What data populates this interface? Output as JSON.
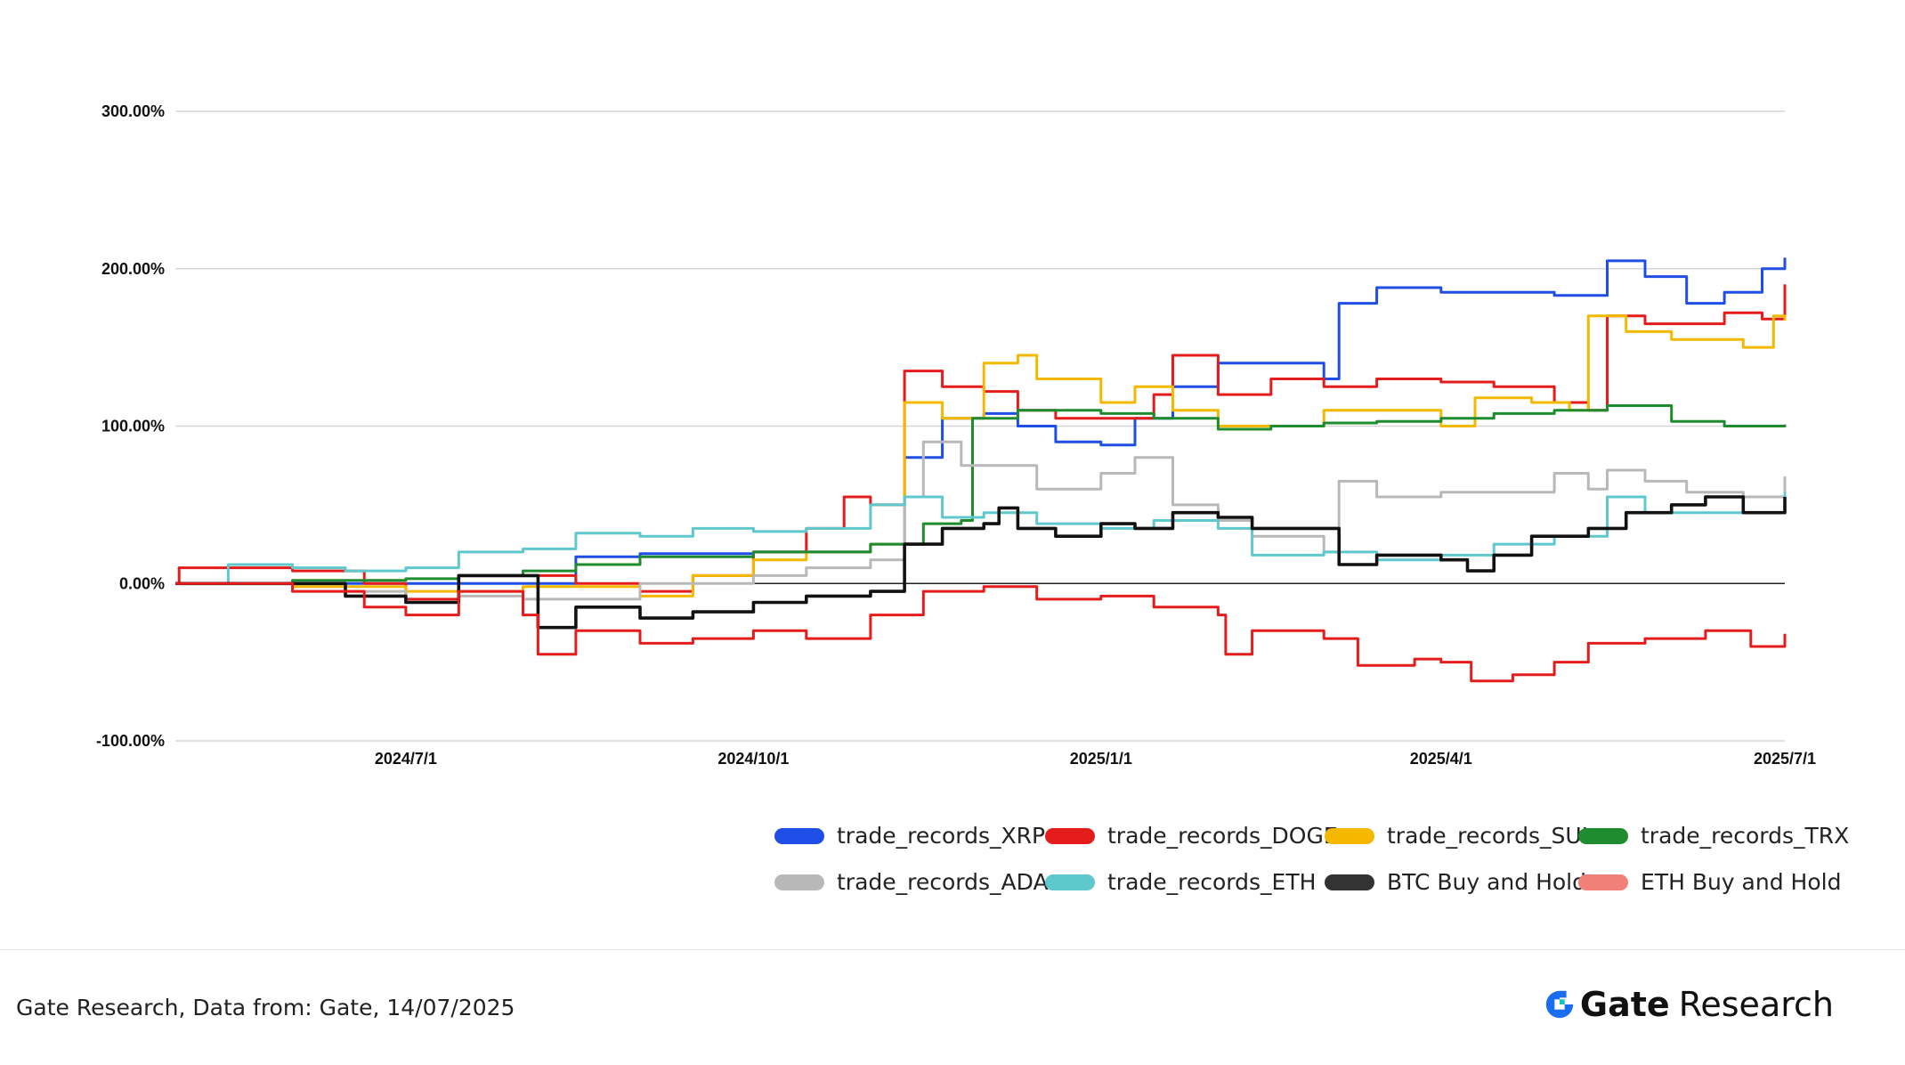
{
  "chart_data": {
    "type": "line",
    "title": "",
    "xlabel": "",
    "ylabel": "",
    "x_ticks": [
      "2024/7/1",
      "2024/10/1",
      "2025/1/1",
      "2025/4/1",
      "2025/7/1"
    ],
    "y_ticks": [
      "-100.00%",
      "0.00%",
      "100.00%",
      "200.00%",
      "300.00%"
    ],
    "ylim": [
      -100,
      300
    ],
    "xlim": [
      "2024/5/1",
      "2025/7/1"
    ],
    "grid": true,
    "legend_position": "bottom-right",
    "series": [
      {
        "name": "trade_records_XRP",
        "color": "#1f4ee6",
        "points": [
          [
            "2024/5/1",
            0
          ],
          [
            "2024/6/1",
            0
          ],
          [
            "2024/7/1",
            0
          ],
          [
            "2024/8/1",
            0
          ],
          [
            "2024/8/15",
            17
          ],
          [
            "2024/9/1",
            19
          ],
          [
            "2024/10/1",
            20
          ],
          [
            "2024/11/1",
            25
          ],
          [
            "2024/11/10",
            80
          ],
          [
            "2024/11/20",
            105
          ],
          [
            "2024/12/1",
            108
          ],
          [
            "2024/12/10",
            100
          ],
          [
            "2024/12/20",
            90
          ],
          [
            "2025/1/1",
            88
          ],
          [
            "2025/1/10",
            105
          ],
          [
            "2025/1/20",
            125
          ],
          [
            "2025/2/1",
            140
          ],
          [
            "2025/2/15",
            140
          ],
          [
            "2025/3/1",
            130
          ],
          [
            "2025/3/5",
            178
          ],
          [
            "2025/3/15",
            188
          ],
          [
            "2025/4/1",
            185
          ],
          [
            "2025/4/20",
            185
          ],
          [
            "2025/5/1",
            183
          ],
          [
            "2025/5/15",
            205
          ],
          [
            "2025/5/25",
            195
          ],
          [
            "2025/6/5",
            178
          ],
          [
            "2025/6/15",
            185
          ],
          [
            "2025/6/25",
            200
          ],
          [
            "2025/7/1",
            207
          ]
        ]
      },
      {
        "name": "trade_records_DOGE",
        "color": "#e51c1c",
        "points": [
          [
            "2024/5/1",
            0
          ],
          [
            "2024/5/2",
            10
          ],
          [
            "2024/6/1",
            8
          ],
          [
            "2024/6/20",
            0
          ],
          [
            "2024/7/1",
            -10
          ],
          [
            "2024/7/15",
            5
          ],
          [
            "2024/8/1",
            5
          ],
          [
            "2024/8/15",
            0
          ],
          [
            "2024/9/1",
            -5
          ],
          [
            "2024/9/15",
            5
          ],
          [
            "2024/10/1",
            20
          ],
          [
            "2024/10/15",
            35
          ],
          [
            "2024/10/25",
            55
          ],
          [
            "2024/11/1",
            50
          ],
          [
            "2024/11/10",
            135
          ],
          [
            "2024/11/20",
            125
          ],
          [
            "2024/12/1",
            122
          ],
          [
            "2024/12/10",
            110
          ],
          [
            "2024/12/20",
            105
          ],
          [
            "2025/1/1",
            105
          ],
          [
            "2025/1/15",
            120
          ],
          [
            "2025/1/20",
            145
          ],
          [
            "2025/2/1",
            120
          ],
          [
            "2025/2/15",
            130
          ],
          [
            "2025/3/1",
            125
          ],
          [
            "2025/3/15",
            130
          ],
          [
            "2025/4/1",
            128
          ],
          [
            "2025/4/15",
            125
          ],
          [
            "2025/5/1",
            115
          ],
          [
            "2025/5/10",
            110
          ],
          [
            "2025/5/15",
            170
          ],
          [
            "2025/5/25",
            165
          ],
          [
            "2025/6/5",
            165
          ],
          [
            "2025/6/15",
            172
          ],
          [
            "2025/6/25",
            168
          ],
          [
            "2025/7/1",
            190
          ]
        ]
      },
      {
        "name": "trade_records_SUI",
        "color": "#f5b800",
        "points": [
          [
            "2024/5/1",
            0
          ],
          [
            "2024/6/1",
            -2
          ],
          [
            "2024/7/1",
            -5
          ],
          [
            "2024/8/1",
            -2
          ],
          [
            "2024/9/1",
            -8
          ],
          [
            "2024/9/15",
            5
          ],
          [
            "2024/10/1",
            15
          ],
          [
            "2024/10/15",
            20
          ],
          [
            "2024/11/1",
            25
          ],
          [
            "2024/11/10",
            115
          ],
          [
            "2024/11/20",
            105
          ],
          [
            "2024/12/1",
            140
          ],
          [
            "2024/12/10",
            145
          ],
          [
            "2024/12/15",
            130
          ],
          [
            "2025/1/1",
            115
          ],
          [
            "2025/1/10",
            125
          ],
          [
            "2025/1/20",
            110
          ],
          [
            "2025/2/1",
            100
          ],
          [
            "2025/2/15",
            100
          ],
          [
            "2025/3/1",
            110
          ],
          [
            "2025/3/15",
            110
          ],
          [
            "2025/4/1",
            100
          ],
          [
            "2025/4/10",
            118
          ],
          [
            "2025/4/25",
            115
          ],
          [
            "2025/5/5",
            110
          ],
          [
            "2025/5/10",
            170
          ],
          [
            "2025/5/20",
            160
          ],
          [
            "2025/6/1",
            155
          ],
          [
            "2025/6/20",
            150
          ],
          [
            "2025/6/28",
            170
          ],
          [
            "2025/7/1",
            167
          ]
        ]
      },
      {
        "name": "trade_records_TRX",
        "color": "#1e8c2e",
        "points": [
          [
            "2024/5/1",
            0
          ],
          [
            "2024/6/1",
            2
          ],
          [
            "2024/7/1",
            3
          ],
          [
            "2024/7/15",
            5
          ],
          [
            "2024/8/1",
            8
          ],
          [
            "2024/8/15",
            12
          ],
          [
            "2024/9/1",
            17
          ],
          [
            "2024/10/1",
            20
          ],
          [
            "2024/11/1",
            25
          ],
          [
            "2024/11/15",
            38
          ],
          [
            "2024/11/25",
            40
          ],
          [
            "2024/11/28",
            105
          ],
          [
            "2024/12/10",
            110
          ],
          [
            "2025/1/1",
            108
          ],
          [
            "2025/1/15",
            105
          ],
          [
            "2025/2/1",
            98
          ],
          [
            "2025/2/15",
            100
          ],
          [
            "2025/3/1",
            102
          ],
          [
            "2025/3/15",
            103
          ],
          [
            "2025/4/1",
            105
          ],
          [
            "2025/4/15",
            108
          ],
          [
            "2025/5/1",
            110
          ],
          [
            "2025/5/15",
            113
          ],
          [
            "2025/6/1",
            103
          ],
          [
            "2025/6/15",
            100
          ],
          [
            "2025/7/1",
            101
          ]
        ]
      },
      {
        "name": "trade_records_ADA",
        "color": "#b8b8b8",
        "points": [
          [
            "2024/5/1",
            0
          ],
          [
            "2024/6/1",
            -5
          ],
          [
            "2024/7/1",
            -12
          ],
          [
            "2024/7/15",
            -8
          ],
          [
            "2024/8/1",
            -10
          ],
          [
            "2024/9/1",
            0
          ],
          [
            "2024/10/1",
            5
          ],
          [
            "2024/10/15",
            10
          ],
          [
            "2024/11/1",
            15
          ],
          [
            "2024/11/10",
            55
          ],
          [
            "2024/11/15",
            90
          ],
          [
            "2024/11/25",
            75
          ],
          [
            "2024/12/1",
            75
          ],
          [
            "2024/12/15",
            60
          ],
          [
            "2025/1/1",
            70
          ],
          [
            "2025/1/10",
            80
          ],
          [
            "2025/1/20",
            50
          ],
          [
            "2025/2/1",
            40
          ],
          [
            "2025/2/10",
            30
          ],
          [
            "2025/3/1",
            20
          ],
          [
            "2025/3/5",
            65
          ],
          [
            "2025/3/15",
            55
          ],
          [
            "2025/4/1",
            58
          ],
          [
            "2025/4/20",
            58
          ],
          [
            "2025/5/1",
            70
          ],
          [
            "2025/5/10",
            60
          ],
          [
            "2025/5/15",
            72
          ],
          [
            "2025/5/25",
            65
          ],
          [
            "2025/6/5",
            58
          ],
          [
            "2025/6/20",
            55
          ],
          [
            "2025/7/1",
            68
          ]
        ]
      },
      {
        "name": "trade_records_ETH",
        "color": "#5ec8cc",
        "points": [
          [
            "2024/5/1",
            0
          ],
          [
            "2024/5/15",
            12
          ],
          [
            "2024/6/1",
            10
          ],
          [
            "2024/6/15",
            8
          ],
          [
            "2024/7/1",
            10
          ],
          [
            "2024/7/15",
            20
          ],
          [
            "2024/8/1",
            22
          ],
          [
            "2024/8/15",
            32
          ],
          [
            "2024/9/1",
            30
          ],
          [
            "2024/9/15",
            35
          ],
          [
            "2024/10/1",
            33
          ],
          [
            "2024/10/15",
            35
          ],
          [
            "2024/11/1",
            50
          ],
          [
            "2024/11/10",
            55
          ],
          [
            "2024/11/20",
            42
          ],
          [
            "2024/12/1",
            45
          ],
          [
            "2024/12/15",
            38
          ],
          [
            "2025/1/1",
            35
          ],
          [
            "2025/1/15",
            40
          ],
          [
            "2025/2/1",
            35
          ],
          [
            "2025/2/10",
            18
          ],
          [
            "2025/3/1",
            20
          ],
          [
            "2025/3/15",
            15
          ],
          [
            "2025/4/1",
            18
          ],
          [
            "2025/4/15",
            25
          ],
          [
            "2025/5/1",
            30
          ],
          [
            "2025/5/15",
            55
          ],
          [
            "2025/5/25",
            45
          ],
          [
            "2025/6/15",
            45
          ],
          [
            "2025/6/25",
            45
          ],
          [
            "2025/7/1",
            58
          ]
        ]
      },
      {
        "name": "BTC Buy and Hold",
        "color": "#111111",
        "points": [
          [
            "2024/5/1",
            0
          ],
          [
            "2024/6/1",
            0
          ],
          [
            "2024/6/15",
            -8
          ],
          [
            "2024/7/1",
            -12
          ],
          [
            "2024/7/15",
            5
          ],
          [
            "2024/8/1",
            5
          ],
          [
            "2024/8/5",
            -28
          ],
          [
            "2024/8/15",
            -15
          ],
          [
            "2024/9/1",
            -22
          ],
          [
            "2024/9/15",
            -18
          ],
          [
            "2024/10/1",
            -12
          ],
          [
            "2024/10/15",
            -8
          ],
          [
            "2024/11/1",
            -5
          ],
          [
            "2024/11/10",
            25
          ],
          [
            "2024/11/20",
            35
          ],
          [
            "2024/12/1",
            38
          ],
          [
            "2024/12/5",
            48
          ],
          [
            "2024/12/10",
            35
          ],
          [
            "2024/12/20",
            30
          ],
          [
            "2025/1/1",
            38
          ],
          [
            "2025/1/10",
            35
          ],
          [
            "2025/1/20",
            45
          ],
          [
            "2025/2/1",
            42
          ],
          [
            "2025/2/10",
            35
          ],
          [
            "2025/2/25",
            35
          ],
          [
            "2025/3/5",
            12
          ],
          [
            "2025/3/15",
            18
          ],
          [
            "2025/4/1",
            15
          ],
          [
            "2025/4/8",
            8
          ],
          [
            "2025/4/15",
            18
          ],
          [
            "2025/4/25",
            30
          ],
          [
            "2025/5/10",
            35
          ],
          [
            "2025/5/20",
            45
          ],
          [
            "2025/6/1",
            50
          ],
          [
            "2025/6/10",
            55
          ],
          [
            "2025/6/20",
            45
          ],
          [
            "2025/7/1",
            55
          ]
        ]
      },
      {
        "name": "ETH Buy and Hold",
        "color": "#e51c1c",
        "points": [
          [
            "2024/5/1",
            0
          ],
          [
            "2024/6/1",
            -5
          ],
          [
            "2024/6/20",
            -15
          ],
          [
            "2024/7/1",
            -20
          ],
          [
            "2024/7/15",
            -5
          ],
          [
            "2024/8/1",
            -20
          ],
          [
            "2024/8/5",
            -45
          ],
          [
            "2024/8/15",
            -30
          ],
          [
            "2024/9/1",
            -38
          ],
          [
            "2024/9/15",
            -35
          ],
          [
            "2024/10/1",
            -30
          ],
          [
            "2024/10/15",
            -35
          ],
          [
            "2024/11/1",
            -20
          ],
          [
            "2024/11/15",
            -5
          ],
          [
            "2024/12/1",
            -2
          ],
          [
            "2024/12/15",
            -10
          ],
          [
            "2025/1/1",
            -8
          ],
          [
            "2025/1/15",
            -15
          ],
          [
            "2025/2/1",
            -20
          ],
          [
            "2025/2/3",
            -45
          ],
          [
            "2025/2/10",
            -30
          ],
          [
            "2025/3/1",
            -35
          ],
          [
            "2025/3/10",
            -52
          ],
          [
            "2025/3/25",
            -48
          ],
          [
            "2025/4/1",
            -50
          ],
          [
            "2025/4/9",
            -62
          ],
          [
            "2025/4/20",
            -58
          ],
          [
            "2025/5/1",
            -50
          ],
          [
            "2025/5/10",
            -38
          ],
          [
            "2025/5/25",
            -35
          ],
          [
            "2025/6/10",
            -30
          ],
          [
            "2025/6/22",
            -40
          ],
          [
            "2025/7/1",
            -32
          ]
        ]
      }
    ]
  },
  "legend": {
    "items": [
      {
        "label": "trade_records_XRP",
        "color": "#1f4ee6"
      },
      {
        "label": "trade_records_DOGE",
        "color": "#e51c1c"
      },
      {
        "label": "trade_records_SUI",
        "color": "#f5b800"
      },
      {
        "label": "trade_records_TRX",
        "color": "#1e8c2e"
      },
      {
        "label": "trade_records_ADA",
        "color": "#b8b8b8"
      },
      {
        "label": "trade_records_ETH",
        "color": "#5ec8cc"
      },
      {
        "label": "BTC Buy and Hold",
        "color": "#333333"
      },
      {
        "label": "ETH Buy and Hold",
        "color": "#f08078"
      }
    ]
  },
  "footer": {
    "source": "Gate Research, Data from: Gate, 14/07/2025",
    "brand_name": "Gate",
    "brand_sub": "Research",
    "brand_color": "#1a6cf0"
  }
}
